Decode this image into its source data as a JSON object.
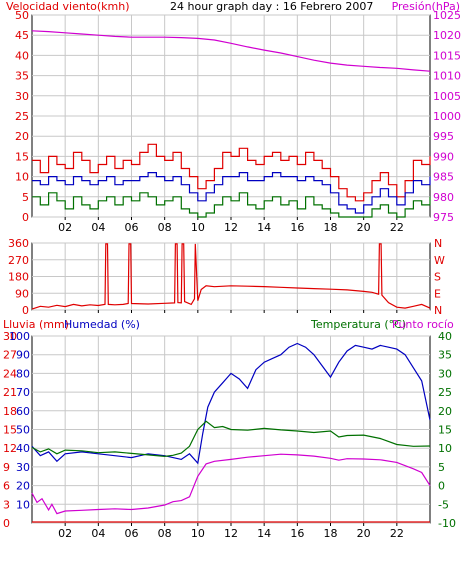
{
  "page": {
    "background": "#ffffff",
    "plot_background": "#ffffff",
    "grid_color": "#c8c8c8"
  },
  "colors": {
    "red": "#e00000",
    "magenta": "#d000d0",
    "blue": "#0000c0",
    "green": "#007000",
    "black": "#000000"
  },
  "hour_ticks": [
    "02",
    "04",
    "06",
    "08",
    "10",
    "12",
    "14",
    "16",
    "18",
    "20",
    "22"
  ],
  "chart_data": [
    {
      "id": "wind-pressure",
      "type": "line",
      "title": "24 hour graph day : 16 Febrero 2007",
      "left_axis_label": "Velocidad viento(kmh)",
      "right_axis_label": "Presión(hPa)",
      "left_ticks": [
        "0",
        "5",
        "10",
        "15",
        "20",
        "25",
        "30",
        "35",
        "40",
        "45",
        "50"
      ],
      "right_ticks": [
        "975",
        "980",
        "985",
        "990",
        "995",
        "1000",
        "1005",
        "1010",
        "1015",
        "1020",
        "1025"
      ],
      "x_range": [
        0,
        24
      ],
      "left_range": [
        0,
        50
      ],
      "right_range": [
        975,
        1025
      ],
      "series": [
        {
          "name": "Presión(hPa)",
          "axis": "right",
          "color": "#d000d0",
          "x": [
            0,
            1,
            2,
            3,
            4,
            5,
            6,
            7,
            8,
            9,
            10,
            11,
            12,
            13,
            14,
            15,
            16,
            17,
            18,
            19,
            20,
            21,
            22,
            23,
            24
          ],
          "y": [
            1021.1,
            1020.9,
            1020.6,
            1020.3,
            1020.0,
            1019.7,
            1019.5,
            1019.5,
            1019.5,
            1019.4,
            1019.2,
            1018.8,
            1018.0,
            1017.1,
            1016.3,
            1015.6,
            1014.7,
            1013.8,
            1013.1,
            1012.6,
            1012.3,
            1012.0,
            1011.8,
            1011.4,
            1011.1
          ]
        },
        {
          "name": "gusts",
          "axis": "left",
          "color": "#e00000",
          "x": [
            0,
            0.5,
            1,
            1.5,
            2,
            2.5,
            3,
            3.5,
            4,
            4.5,
            5,
            5.5,
            6,
            6.5,
            7,
            7.5,
            8,
            8.5,
            9,
            9.5,
            10,
            10.5,
            11,
            11.5,
            12,
            12.5,
            13,
            13.5,
            14,
            14.5,
            15,
            15.5,
            16,
            16.5,
            17,
            17.5,
            18,
            18.5,
            19,
            19.5,
            20,
            20.5,
            21,
            21.5,
            22,
            22.5,
            23,
            23.5,
            24
          ],
          "y": [
            14,
            11,
            15,
            13,
            12,
            16,
            14,
            11,
            13,
            15,
            12,
            14,
            13,
            16,
            18,
            15,
            14,
            16,
            12,
            10,
            7,
            9,
            12,
            16,
            15,
            17,
            14,
            13,
            15,
            16,
            14,
            15,
            13,
            16,
            14,
            12,
            10,
            7,
            5,
            4,
            6,
            9,
            11,
            8,
            5,
            9,
            14,
            13,
            15
          ]
        },
        {
          "name": "average",
          "axis": "left",
          "color": "#0000c0",
          "x": [
            0,
            0.5,
            1,
            1.5,
            2,
            2.5,
            3,
            3.5,
            4,
            4.5,
            5,
            5.5,
            6,
            6.5,
            7,
            7.5,
            8,
            8.5,
            9,
            9.5,
            10,
            10.5,
            11,
            11.5,
            12,
            12.5,
            13,
            13.5,
            14,
            14.5,
            15,
            15.5,
            16,
            16.5,
            17,
            17.5,
            18,
            18.5,
            19,
            19.5,
            20,
            20.5,
            21,
            21.5,
            22,
            22.5,
            23,
            23.5,
            24
          ],
          "y": [
            9,
            8,
            10,
            9,
            8,
            10,
            9,
            8,
            9,
            10,
            8,
            9,
            9,
            10,
            11,
            10,
            9,
            10,
            8,
            6,
            4,
            6,
            8,
            10,
            10,
            11,
            9,
            9,
            10,
            11,
            10,
            10,
            9,
            10,
            9,
            8,
            6,
            3,
            2,
            1,
            3,
            5,
            7,
            5,
            3,
            6,
            9,
            8,
            10
          ]
        },
        {
          "name": "lull",
          "axis": "left",
          "color": "#007000",
          "x": [
            0,
            0.5,
            1,
            1.5,
            2,
            2.5,
            3,
            3.5,
            4,
            4.5,
            5,
            5.5,
            6,
            6.5,
            7,
            7.5,
            8,
            8.5,
            9,
            9.5,
            10,
            10.5,
            11,
            11.5,
            12,
            12.5,
            13,
            13.5,
            14,
            14.5,
            15,
            15.5,
            16,
            16.5,
            17,
            17.5,
            18,
            18.5,
            19,
            19.5,
            20,
            20.5,
            21,
            21.5,
            22,
            22.5,
            23,
            23.5,
            24
          ],
          "y": [
            5,
            3,
            6,
            4,
            2,
            5,
            3,
            2,
            4,
            5,
            3,
            5,
            4,
            6,
            5,
            3,
            4,
            5,
            2,
            1,
            0,
            1,
            3,
            5,
            4,
            6,
            3,
            2,
            4,
            5,
            3,
            4,
            2,
            5,
            3,
            2,
            1,
            0,
            0,
            0,
            0,
            2,
            3,
            1,
            0,
            2,
            4,
            3,
            5
          ]
        }
      ]
    },
    {
      "id": "wind-direction",
      "type": "line",
      "left_ticks": [
        "0",
        "90",
        "180",
        "270",
        "360"
      ],
      "right_ticks": [
        "N",
        "E",
        "S",
        "W",
        "N"
      ],
      "x_range": [
        0,
        24
      ],
      "y_range": [
        0,
        360
      ],
      "series": [
        {
          "name": "direction",
          "color": "#e00000",
          "x": [
            0,
            0.5,
            1,
            1.5,
            2,
            2.5,
            3,
            3.5,
            4,
            4.4,
            4.45,
            4.55,
            4.6,
            5,
            5.5,
            5.8,
            5.85,
            5.95,
            6,
            7,
            8,
            8.6,
            8.65,
            8.75,
            8.8,
            9.0,
            9.05,
            9.15,
            9.2,
            9.6,
            9.8,
            9.85,
            10.0,
            10.2,
            10.5,
            11,
            12,
            13,
            14,
            15,
            16,
            17,
            18,
            19,
            19.5,
            20,
            20.5,
            20.9,
            20.95,
            21.05,
            21.1,
            21.5,
            22,
            22.5,
            23,
            23.5,
            24
          ],
          "y": [
            5,
            20,
            15,
            25,
            18,
            30,
            22,
            28,
            24,
            30,
            355,
            355,
            30,
            28,
            30,
            35,
            355,
            355,
            35,
            32,
            36,
            38,
            355,
            355,
            40,
            38,
            355,
            355,
            45,
            30,
            60,
            355,
            50,
            110,
            130,
            125,
            130,
            128,
            126,
            122,
            118,
            115,
            112,
            108,
            104,
            100,
            95,
            85,
            355,
            355,
            80,
            40,
            15,
            10,
            20,
            30,
            10
          ]
        }
      ]
    },
    {
      "id": "humidity-temperature",
      "type": "line",
      "left_axis_label": "Lluvia (mm)",
      "left2_axis_label": "Humedad (%)",
      "right_axis_label": "Temperatura (°C)",
      "right2_axis_label": "Punto rocío",
      "left_ticks": [
        "0",
        "3",
        "6",
        "9",
        "12",
        "15",
        "18",
        "21",
        "24",
        "27",
        "30"
      ],
      "left2_ticks": [
        "10",
        "20",
        "30",
        "40",
        "50",
        "60",
        "70",
        "80",
        "90",
        "100"
      ],
      "right_ticks": [
        "-10",
        "-5",
        "0",
        "5",
        "10",
        "15",
        "20",
        "25",
        "30",
        "35",
        "40"
      ],
      "x_range": [
        0,
        24
      ],
      "humidity_range": [
        0,
        100
      ],
      "temperature_range": [
        -10,
        40
      ],
      "series": [
        {
          "name": "Humedad (%)",
          "axis": "left2",
          "color": "#0000c0",
          "x": [
            0,
            0.5,
            1,
            1.5,
            2,
            3,
            4,
            5,
            6,
            7,
            8,
            8.5,
            9,
            9.5,
            10,
            10.3,
            10.6,
            11,
            11.5,
            12,
            12.5,
            13,
            13.5,
            14,
            14.5,
            15,
            15.5,
            16,
            16.5,
            17,
            17.5,
            18,
            18.5,
            19,
            19.5,
            20,
            20.5,
            21,
            21.5,
            22,
            22.5,
            23,
            23.5,
            24
          ],
          "y": [
            41,
            36,
            38,
            33,
            37,
            38,
            37,
            36,
            35,
            37,
            36,
            35,
            34,
            37,
            32,
            48,
            62,
            70,
            75,
            80,
            77,
            72,
            82,
            86,
            88,
            90,
            94,
            96,
            94,
            90,
            84,
            78,
            86,
            92,
            95,
            94,
            93,
            95,
            94,
            93,
            90,
            83,
            76,
            55
          ]
        },
        {
          "name": "Temperatura (°C)",
          "axis": "right",
          "color": "#007000",
          "x": [
            0,
            0.5,
            1,
            1.5,
            2,
            3,
            4,
            5,
            6,
            7,
            8,
            8.5,
            9,
            9.5,
            10,
            10.5,
            11,
            11.5,
            12,
            13,
            14,
            15,
            16,
            17,
            18,
            18.5,
            19,
            20,
            21,
            22,
            23,
            24
          ],
          "y": [
            10.2,
            9.0,
            9.8,
            8.5,
            9.5,
            9.3,
            8.8,
            9.0,
            8.6,
            8.2,
            7.8,
            8.1,
            8.7,
            10.5,
            15.0,
            17.2,
            15.5,
            15.8,
            15.0,
            14.8,
            15.3,
            14.9,
            14.6,
            14.2,
            14.6,
            13.0,
            13.4,
            13.5,
            12.6,
            11.0,
            10.5,
            10.6
          ]
        },
        {
          "name": "Punto rocío",
          "axis": "right",
          "color": "#d000d0",
          "x": [
            0,
            0.3,
            0.6,
            1,
            1.2,
            1.5,
            2,
            3,
            4,
            5,
            6,
            7,
            8,
            8.5,
            9,
            9.5,
            10,
            10.5,
            11,
            12,
            13,
            14,
            15,
            16,
            17,
            18,
            18.5,
            19,
            20,
            21,
            22,
            23,
            23.5,
            24
          ],
          "y": [
            -2.0,
            -4.5,
            -3.5,
            -6.5,
            -5.0,
            -7.5,
            -6.8,
            -6.6,
            -6.4,
            -6.2,
            -6.4,
            -6.0,
            -5.2,
            -4.3,
            -4.0,
            -3.0,
            2.5,
            5.8,
            6.5,
            7.0,
            7.6,
            8.0,
            8.4,
            8.2,
            7.9,
            7.3,
            6.8,
            7.2,
            7.1,
            6.9,
            6.2,
            4.5,
            3.5,
            0.0
          ]
        },
        {
          "name": "Lluvia (mm)",
          "axis": "left",
          "color": "#e00000",
          "x": [
            0,
            24
          ],
          "y": [
            0,
            0
          ]
        }
      ]
    }
  ]
}
